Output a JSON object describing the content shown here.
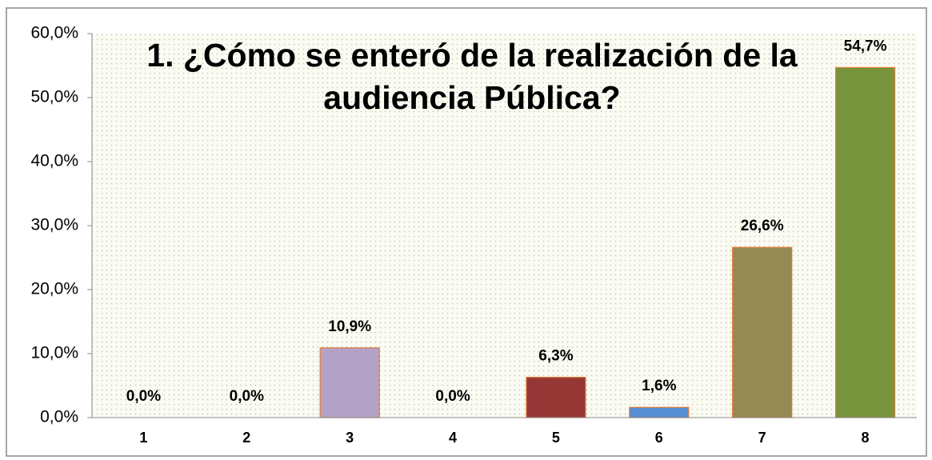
{
  "chart_data": {
    "type": "bar",
    "title": [
      "1. ¿Cómo se enteró de la realización de la",
      "audiencia Pública?"
    ],
    "categories": [
      "1",
      "2",
      "3",
      "4",
      "5",
      "6",
      "7",
      "8"
    ],
    "values": [
      0,
      0,
      10.9,
      0,
      6.3,
      1.6,
      26.6,
      54.7
    ],
    "value_labels": [
      "0,0%",
      "0,0%",
      "10,9%",
      "0,0%",
      "6,3%",
      "1,6%",
      "26,6%",
      "54,7%"
    ],
    "colors": [
      "#4f81bd",
      "#c0504d",
      "#b3a2c7",
      "#4bacc6",
      "#953735",
      "#558ed5",
      "#948a54",
      "#77933c"
    ],
    "ylim": [
      0,
      60
    ],
    "yticks": [
      {
        "value": 0,
        "label": "0,0%"
      },
      {
        "value": 10,
        "label": "10,0%"
      },
      {
        "value": 20,
        "label": "20,0%"
      },
      {
        "value": 30,
        "label": "30,0%"
      },
      {
        "value": 40,
        "label": "40,0%"
      },
      {
        "value": 50,
        "label": "50,0%"
      },
      {
        "value": 60,
        "label": "60,0%"
      }
    ],
    "grid": false
  }
}
